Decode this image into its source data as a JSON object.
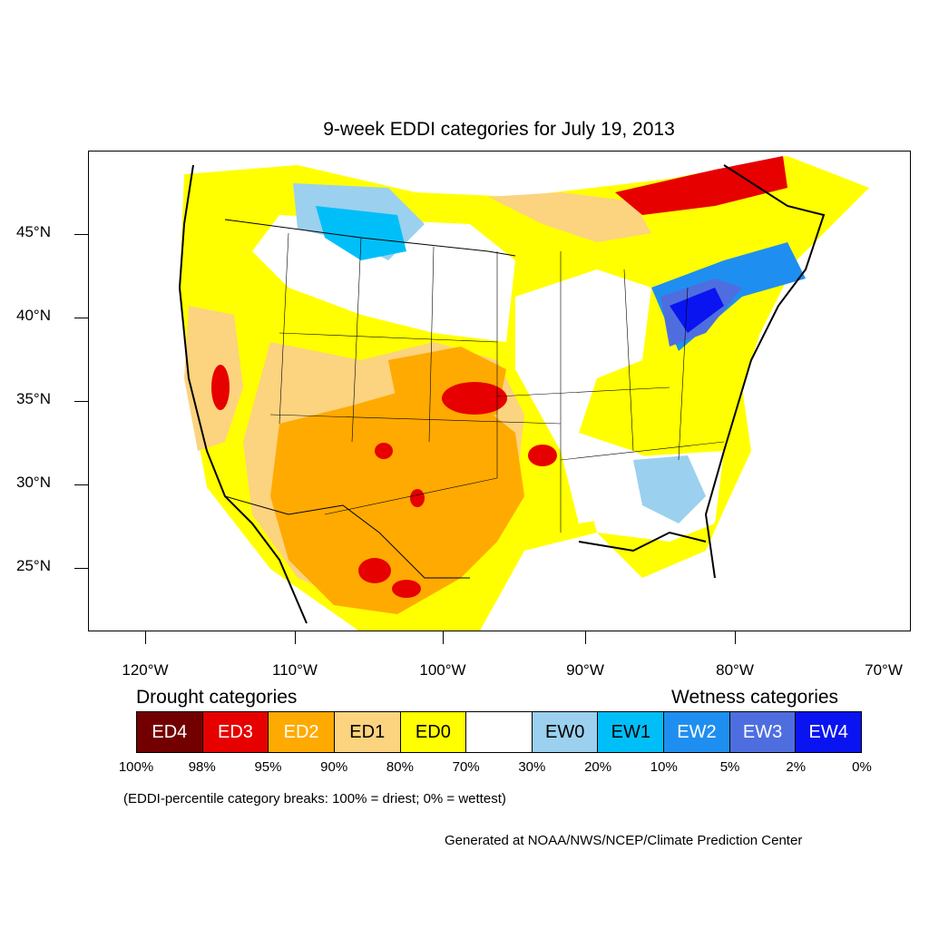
{
  "title": "9-week EDDI categories for July 19, 2013",
  "y_axis_labels": [
    "45°N",
    "40°N",
    "35°N",
    "30°N",
    "25°N"
  ],
  "x_axis_labels": [
    "120°W",
    "110°W",
    "100°W",
    "90°W",
    "80°W",
    "70°W"
  ],
  "legend": {
    "drought_title": "Drought categories",
    "wetness_title": "Wetness categories",
    "categories": [
      {
        "label": "ED4",
        "color": "#730000",
        "text_color": "#ffffff"
      },
      {
        "label": "ED3",
        "color": "#e60000",
        "text_color": "#ffffff"
      },
      {
        "label": "ED2",
        "color": "#ffaa00",
        "text_color": "#ffffff"
      },
      {
        "label": "ED1",
        "color": "#fcd37f",
        "text_color": "#000000"
      },
      {
        "label": "ED0",
        "color": "#ffff00",
        "text_color": "#000000"
      },
      {
        "label": "",
        "color": "#ffffff",
        "text_color": "#000000"
      },
      {
        "label": "EW0",
        "color": "#9bd0ef",
        "text_color": "#000000"
      },
      {
        "label": "EW1",
        "color": "#00bff8",
        "text_color": "#000000"
      },
      {
        "label": "EW2",
        "color": "#1e8ff0",
        "text_color": "#ffffff"
      },
      {
        "label": "EW3",
        "color": "#4e6ee0",
        "text_color": "#ffffff"
      },
      {
        "label": "EW4",
        "color": "#0a14f0",
        "text_color": "#ffffff"
      }
    ],
    "percentiles": [
      "100%",
      "98%",
      "95%",
      "90%",
      "80%",
      "70%",
      "30%",
      "20%",
      "10%",
      "5%",
      "2%",
      "0%"
    ]
  },
  "note": "(EDDI-percentile category breaks: 100% = driest; 0% = wettest)",
  "credit": "Generated at NOAA/NWS/NCEP/Climate Prediction Center"
}
